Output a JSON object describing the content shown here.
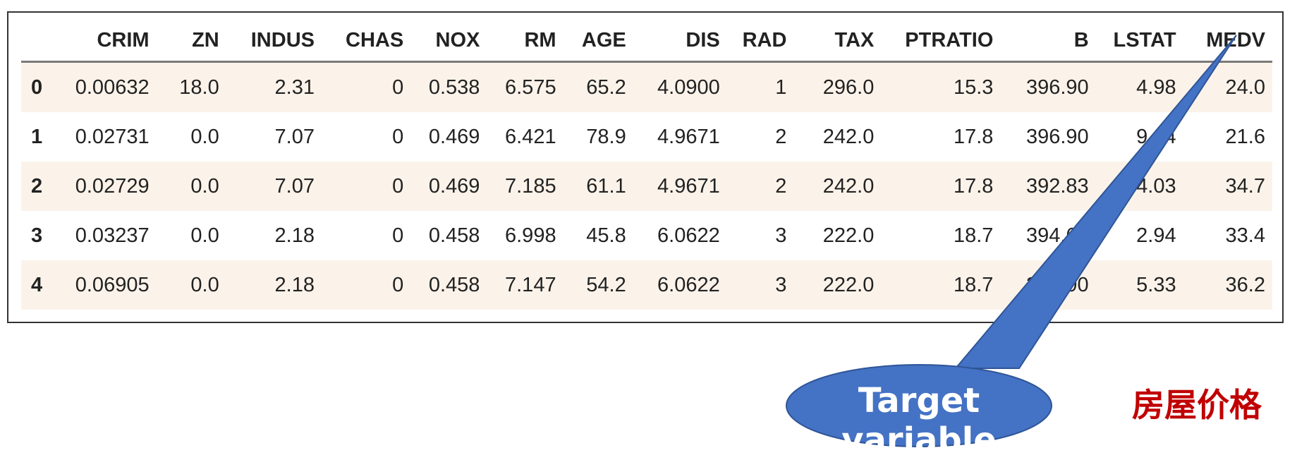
{
  "table": {
    "columns": [
      "",
      "CRIM",
      "ZN",
      "INDUS",
      "CHAS",
      "NOX",
      "RM",
      "AGE",
      "DIS",
      "RAD",
      "TAX",
      "PTRATIO",
      "B",
      "LSTAT",
      "MEDV"
    ],
    "rows": [
      [
        "0",
        "0.00632",
        "18.0",
        "2.31",
        "0",
        "0.538",
        "6.575",
        "65.2",
        "4.0900",
        "1",
        "296.0",
        "15.3",
        "396.90",
        "4.98",
        "24.0"
      ],
      [
        "1",
        "0.02731",
        "0.0",
        "7.07",
        "0",
        "0.469",
        "6.421",
        "78.9",
        "4.9671",
        "2",
        "242.0",
        "17.8",
        "396.90",
        "9.14",
        "21.6"
      ],
      [
        "2",
        "0.02729",
        "0.0",
        "7.07",
        "0",
        "0.469",
        "7.185",
        "61.1",
        "4.9671",
        "2",
        "242.0",
        "17.8",
        "392.83",
        "4.03",
        "34.7"
      ],
      [
        "3",
        "0.03237",
        "0.0",
        "2.18",
        "0",
        "0.458",
        "6.998",
        "45.8",
        "6.0622",
        "3",
        "222.0",
        "18.7",
        "394.63",
        "2.94",
        "33.4"
      ],
      [
        "4",
        "0.06905",
        "0.0",
        "2.18",
        "0",
        "0.458",
        "7.147",
        "54.2",
        "6.0622",
        "3",
        "222.0",
        "18.7",
        "396.90",
        "5.33",
        "36.2"
      ]
    ]
  },
  "callout": {
    "text": "Target variable",
    "color": "#4472c4"
  },
  "label_cn": {
    "text": "房屋价格",
    "color": "#c00000"
  }
}
